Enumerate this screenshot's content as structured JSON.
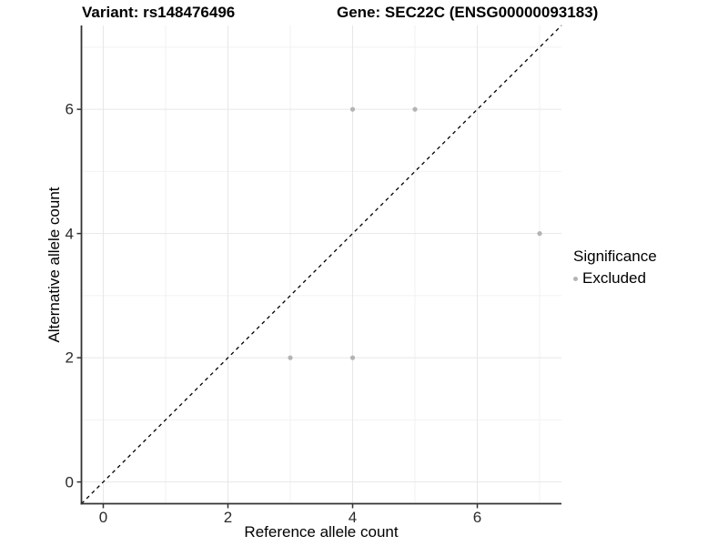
{
  "titles": {
    "variant": "Variant: rs148476496",
    "gene": "Gene: SEC22C (ENSG00000093183)"
  },
  "chart_data": {
    "type": "scatter",
    "xlabel": "Reference allele count",
    "ylabel": "Alternative allele count",
    "xlim": [
      -0.35,
      7.35
    ],
    "ylim": [
      -0.35,
      7.35
    ],
    "x_ticks": [
      0,
      2,
      4,
      6
    ],
    "y_ticks": [
      0,
      2,
      4,
      6
    ],
    "x_minor": [
      1,
      3,
      5,
      7
    ],
    "y_minor": [
      1,
      3,
      5,
      7
    ],
    "grid": true,
    "reference_line": {
      "type": "identity",
      "slope": 1,
      "intercept": 0,
      "style": "dashed",
      "color": "#000000"
    },
    "series": [
      {
        "name": "Excluded",
        "color": "#b4b4b4",
        "points": [
          [
            4,
            6
          ],
          [
            5,
            6
          ],
          [
            7,
            4
          ],
          [
            3,
            2
          ],
          [
            4,
            2
          ]
        ]
      }
    ],
    "legend": {
      "title": "Significance",
      "position": "right",
      "items": [
        {
          "label": "Excluded",
          "color": "#b4b4b4"
        }
      ]
    }
  },
  "colors": {
    "background": "#ffffff",
    "grid_major": "#e7e7e7",
    "grid_minor": "#f2f2f2",
    "axis_line": "#333333",
    "tick_text": "#2b2b2b",
    "point": "#b4b4b4"
  }
}
